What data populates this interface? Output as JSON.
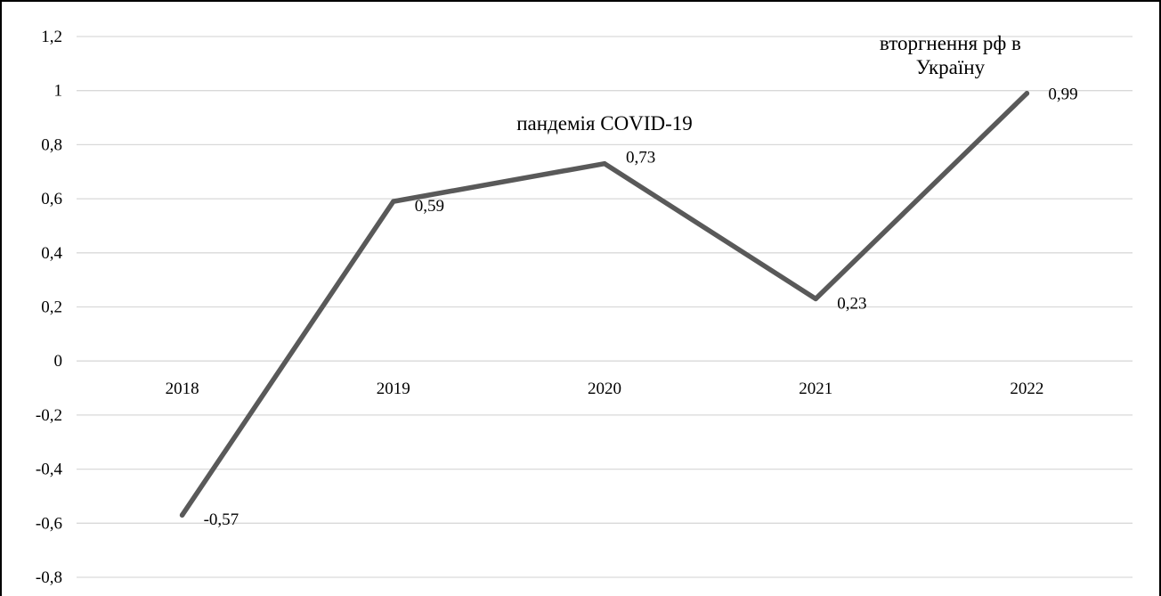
{
  "chart_data": {
    "type": "line",
    "title": "",
    "xlabel": "",
    "ylabel": "",
    "categories": [
      "2018",
      "2019",
      "2020",
      "2021",
      "2022"
    ],
    "series": [
      {
        "values": [
          -0.57,
          0.59,
          0.73,
          0.23,
          0.99
        ],
        "data_labels": [
          "-0,57",
          "0,59",
          "0,73",
          "0,23",
          "0,99"
        ],
        "color": "#595959"
      }
    ],
    "ylim": [
      -0.8,
      1.2
    ],
    "y_ticks": [
      {
        "value": 1.2,
        "label": "1,2"
      },
      {
        "value": 1.0,
        "label": "1"
      },
      {
        "value": 0.8,
        "label": "0,8"
      },
      {
        "value": 0.6,
        "label": "0,6"
      },
      {
        "value": 0.4,
        "label": "0,4"
      },
      {
        "value": 0.2,
        "label": "0,2"
      },
      {
        "value": 0.0,
        "label": "0"
      },
      {
        "value": -0.2,
        "label": "-0,2"
      },
      {
        "value": -0.4,
        "label": "-0,4"
      },
      {
        "value": -0.6,
        "label": "-0,6"
      },
      {
        "value": -0.8,
        "label": "-0,8"
      }
    ],
    "grid": true,
    "gridline_color": "#d9d9d9",
    "x_labels_position": "at zero line",
    "legend": "none",
    "annotations": [
      {
        "category": "2020",
        "lines": [
          "пандемія COVID-19"
        ]
      },
      {
        "category": "2022",
        "lines": [
          "вторгнення рф в",
          "Україну"
        ]
      }
    ]
  }
}
